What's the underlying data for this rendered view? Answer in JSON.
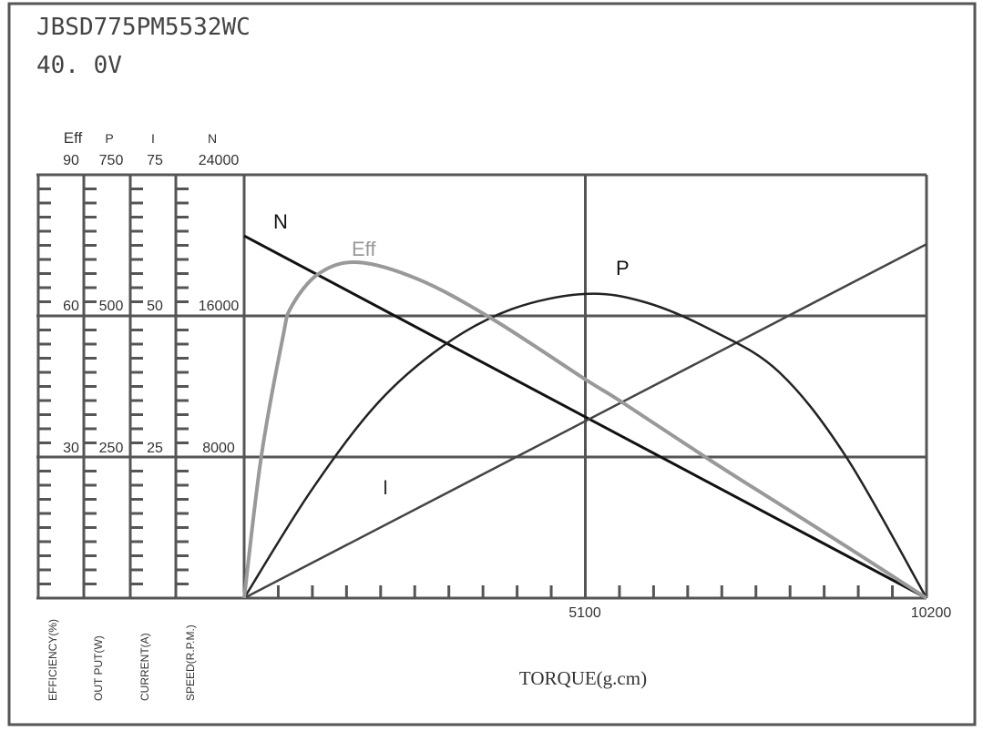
{
  "header": {
    "model": "JBSD775PM5532WC",
    "voltage": "40. 0V"
  },
  "colors": {
    "frame": "#555555",
    "N": "#111111",
    "P": "#222222",
    "I": "#444444",
    "Eff": "#999999"
  },
  "chart_data": {
    "type": "line",
    "title": "JBSD775PM5532WC",
    "subtitle": "40. 0V",
    "xlabel": "TORQUE(g.cm)",
    "xlim": [
      0,
      10200
    ],
    "x_tick_labels": [
      "5100",
      "10200"
    ],
    "grid": true,
    "y_axes": [
      {
        "key": "Eff",
        "header": "Eff",
        "label": "EFFICIENCY(%)",
        "ylim": [
          0,
          90
        ],
        "tick_labels": [
          "90",
          "60",
          "30"
        ]
      },
      {
        "key": "P",
        "header": "P",
        "label": "OUT PUT(W)",
        "ylim": [
          0,
          750
        ],
        "tick_labels": [
          "750",
          "500",
          "250"
        ]
      },
      {
        "key": "I",
        "header": "I",
        "label": "CURRENT(A)",
        "ylim": [
          0,
          75
        ],
        "tick_labels": [
          "75",
          "50",
          "25"
        ]
      },
      {
        "key": "N",
        "header": "N",
        "label": "SPEED(R.P.M.)",
        "ylim": [
          0,
          24000
        ],
        "tick_labels": [
          "24000",
          "16000",
          "8000"
        ]
      }
    ],
    "series": [
      {
        "name": "N",
        "axis": "N",
        "x": [
          0,
          10200
        ],
        "y": [
          20540,
          0
        ]
      },
      {
        "name": "I",
        "axis": "I",
        "x": [
          0,
          10200
        ],
        "y": [
          0,
          62.7
        ]
      },
      {
        "name": "P",
        "axis": "P",
        "x": [
          0,
          1000,
          2000,
          3000,
          4000,
          5100,
          6000,
          7000,
          8000,
          9000,
          10200
        ],
        "y": [
          0,
          190,
          346,
          449,
          512,
          539,
          524,
          474,
          400,
          250,
          0
        ]
      },
      {
        "name": "Eff",
        "axis": "Eff",
        "x": [
          0,
          255,
          572,
          708,
          1117,
          1702,
          2615,
          3704,
          5100,
          5611,
          7000,
          8000,
          9000,
          10200
        ],
        "y": [
          0,
          30,
          55,
          62,
          69,
          71.4,
          67.7,
          59.4,
          46.5,
          42,
          29,
          20,
          11,
          0
        ]
      }
    ]
  }
}
